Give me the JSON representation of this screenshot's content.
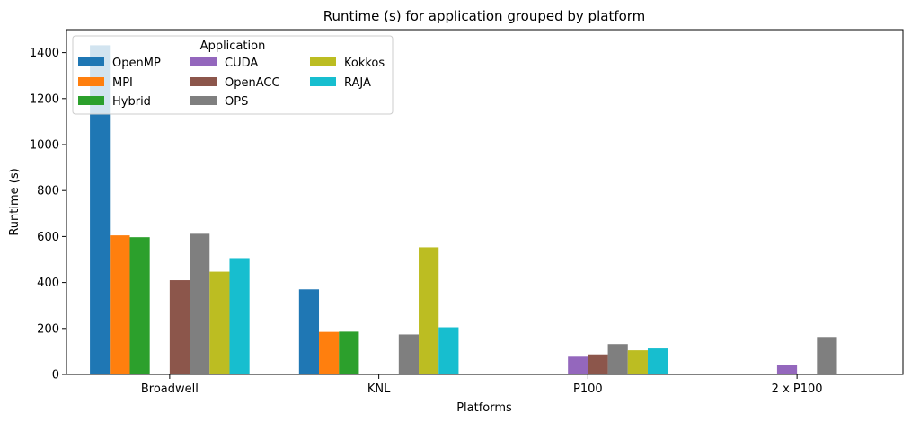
{
  "chart_data": {
    "type": "bar",
    "title": "Runtime (s) for application grouped by platform",
    "xlabel": "Platforms",
    "ylabel": "Runtime (s)",
    "ylim": [
      0,
      1500
    ],
    "yticks": [
      0,
      200,
      400,
      600,
      800,
      1000,
      1200,
      1400
    ],
    "categories": [
      "Broadwell",
      "KNL",
      "P100",
      "2 x P100"
    ],
    "legend": {
      "title": "Application",
      "placement": "top-left",
      "columns": 3
    },
    "series": [
      {
        "name": "OpenMP",
        "color": "#1f77b4",
        "values": [
          1432,
          370,
          null,
          null
        ]
      },
      {
        "name": "MPI",
        "color": "#ff7f0e",
        "values": [
          605,
          185,
          null,
          null
        ]
      },
      {
        "name": "Hybrid",
        "color": "#2ca02c",
        "values": [
          597,
          186,
          null,
          null
        ]
      },
      {
        "name": "CUDA",
        "color": "#9467bd",
        "values": [
          null,
          null,
          77,
          41
        ]
      },
      {
        "name": "OpenACC",
        "color": "#8c564b",
        "values": [
          410,
          null,
          87,
          null
        ]
      },
      {
        "name": "OPS",
        "color": "#7f7f7f",
        "values": [
          612,
          174,
          132,
          163
        ]
      },
      {
        "name": "Kokkos",
        "color": "#bcbd22",
        "values": [
          447,
          553,
          105,
          null
        ]
      },
      {
        "name": "RAJA",
        "color": "#17becf",
        "values": [
          506,
          205,
          113,
          null
        ]
      }
    ]
  }
}
